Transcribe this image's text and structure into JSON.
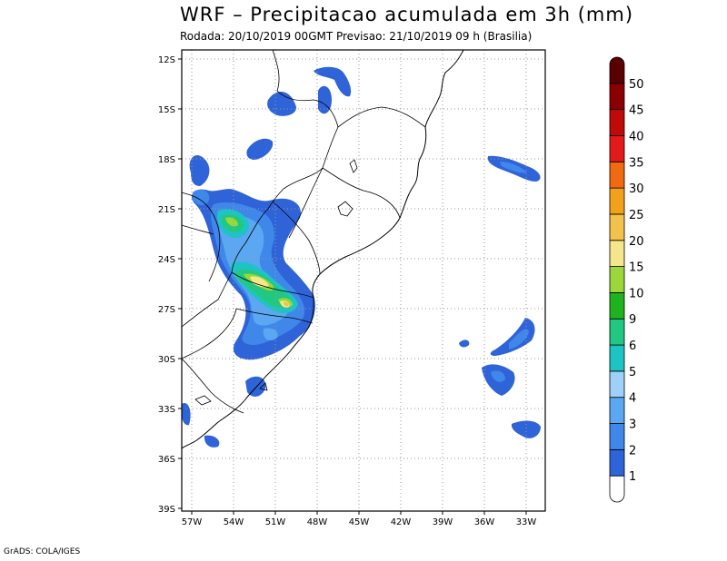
{
  "header": {
    "title": "WRF – Precipitacao acumulada em 3h (mm)",
    "subtitle": "Rodada: 20/10/2019 00GMT Previsao: 21/10/2019 09 h (Brasilia)"
  },
  "footer": {
    "credit": "GrADS: COLA/IGES"
  },
  "map": {
    "lon_range": [
      -58,
      -30
    ],
    "lat_range": [
      -39,
      -11.5
    ],
    "lon_ticks": [
      {
        "value": -57,
        "label": "57W"
      },
      {
        "value": -54,
        "label": "54W"
      },
      {
        "value": -51,
        "label": "51W"
      },
      {
        "value": -48,
        "label": "48W"
      },
      {
        "value": -45,
        "label": "45W"
      },
      {
        "value": -42,
        "label": "42W"
      },
      {
        "value": -39,
        "label": "39W"
      },
      {
        "value": -36,
        "label": "36W"
      },
      {
        "value": -33,
        "label": "33W"
      }
    ],
    "lat_ticks": [
      {
        "value": -12,
        "label": "12S"
      },
      {
        "value": -15,
        "label": "15S"
      },
      {
        "value": -18,
        "label": "18S"
      },
      {
        "value": -21,
        "label": "21S"
      },
      {
        "value": -24,
        "label": "24S"
      },
      {
        "value": -27,
        "label": "27S"
      },
      {
        "value": -30,
        "label": "30S"
      },
      {
        "value": -33,
        "label": "33S"
      },
      {
        "value": -36,
        "label": "36S"
      },
      {
        "value": -39,
        "label": "39S"
      }
    ],
    "grid": true
  },
  "colorbar": {
    "levels": [
      "1",
      "2",
      "3",
      "4",
      "5",
      "6",
      "9",
      "10",
      "15",
      "20",
      "25",
      "30",
      "35",
      "40",
      "45",
      "50"
    ],
    "colors": [
      "#ffffff",
      "#2f64d8",
      "#3f88ea",
      "#5ba7f2",
      "#9fd1f8",
      "#1ec4c4",
      "#22c882",
      "#1fb41f",
      "#9ad83a",
      "#f4e68a",
      "#f2c24c",
      "#f2a21a",
      "#ef6a10",
      "#e21a1a",
      "#c00a0a",
      "#8a0000",
      "#5a0000"
    ]
  },
  "precip_areas": [
    {
      "name": "area-rs-sc-plateau",
      "level": 1
    },
    {
      "name": "area-parana-band",
      "level": 6
    },
    {
      "name": "area-sc-core",
      "level": 20
    },
    {
      "name": "area-atlantic-east",
      "level": 2
    }
  ]
}
